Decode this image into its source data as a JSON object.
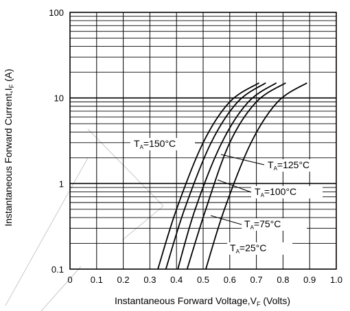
{
  "chart_data": {
    "type": "line",
    "title": "",
    "xlabel": "Instantaneous Forward Voltage,V",
    "xlabel_sub": "F",
    "xlabel_tail": " (Volts)",
    "ylabel": "Instantaneous Forward Current,I",
    "ylabel_sub": "F",
    "ylabel_tail": " (A)",
    "x_scale": "linear",
    "y_scale": "log",
    "xlim": [
      0,
      1.0
    ],
    "ylim": [
      0.1,
      100
    ],
    "grid": true,
    "legend": "none (curves labeled inline)",
    "x_ticks": [
      "0",
      "0.1",
      "0.2",
      "0.3",
      "0.4",
      "0.5",
      "0.6",
      "0.7",
      "0.8",
      "0.9",
      "1.0"
    ],
    "y_ticks": [
      "0.1",
      "1",
      "10",
      "100"
    ],
    "line_color": "#000000",
    "series": [
      {
        "name": "=150°C",
        "label_prefix": "T",
        "label_sub": "A",
        "x": [
          0.33,
          0.4,
          0.5,
          0.6,
          0.71
        ],
        "y": [
          0.1,
          0.5,
          3.0,
          9.0,
          15
        ]
      },
      {
        "name": "=125°C",
        "label_prefix": "T",
        "label_sub": "A",
        "x": [
          0.36,
          0.43,
          0.53,
          0.63,
          0.735
        ],
        "y": [
          0.1,
          0.5,
          3.0,
          9.0,
          15
        ]
      },
      {
        "name": "=100°C",
        "label_prefix": "T",
        "label_sub": "A",
        "x": [
          0.405,
          0.47,
          0.57,
          0.67,
          0.775
        ],
        "y": [
          0.1,
          0.5,
          3.0,
          9.0,
          15
        ]
      },
      {
        "name": "=75°C",
        "label_prefix": "T",
        "label_sub": "A",
        "x": [
          0.44,
          0.51,
          0.6,
          0.7,
          0.81
        ],
        "y": [
          0.1,
          0.5,
          3.0,
          9.0,
          15
        ]
      },
      {
        "name": "=25°C",
        "label_prefix": "T",
        "label_sub": "A",
        "x": [
          0.51,
          0.58,
          0.68,
          0.78,
          0.89
        ],
        "y": [
          0.1,
          0.5,
          3.0,
          9.0,
          15
        ]
      }
    ]
  }
}
